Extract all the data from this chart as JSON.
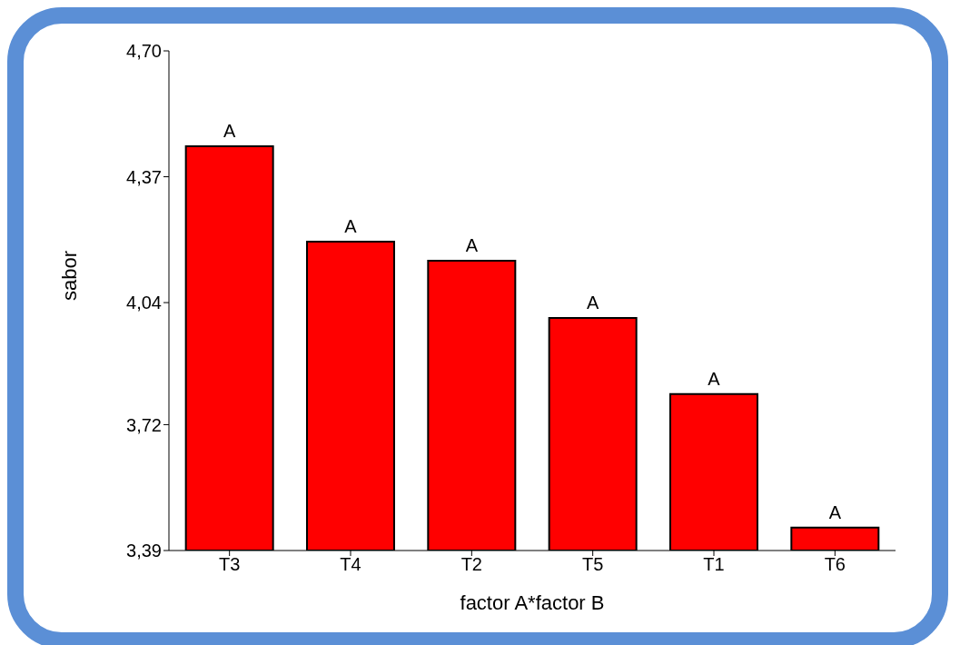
{
  "chart_data": {
    "type": "bar",
    "xlabel": "factor A*factor B",
    "ylabel": "sabor",
    "categories": [
      "T3",
      "T4",
      "T2",
      "T5",
      "T1",
      "T6"
    ],
    "values": [
      4.45,
      4.2,
      4.15,
      4.0,
      3.8,
      3.45
    ],
    "color": "#ff0000",
    "ylim": [
      3.39,
      4.7
    ],
    "yticks": [
      {
        "value": 3.39,
        "label": "3,39"
      },
      {
        "value": 3.72,
        "label": "3,72"
      },
      {
        "value": 4.04,
        "label": "4,04"
      },
      {
        "value": 4.37,
        "label": "4,37"
      },
      {
        "value": 4.7,
        "label": "4,70"
      }
    ],
    "annotations": [
      {
        "text": "A",
        "x": "T3",
        "y": 4.45
      },
      {
        "text": "A",
        "x": "T4",
        "y": 4.2
      },
      {
        "text": "A",
        "x": "T2",
        "y": 4.15
      },
      {
        "text": "A",
        "x": "T5",
        "y": 4.0
      },
      {
        "text": "A",
        "x": "T1",
        "y": 3.8
      },
      {
        "text": "A",
        "x": "T6",
        "y": 3.45
      }
    ],
    "grid": false,
    "legend": false
  }
}
